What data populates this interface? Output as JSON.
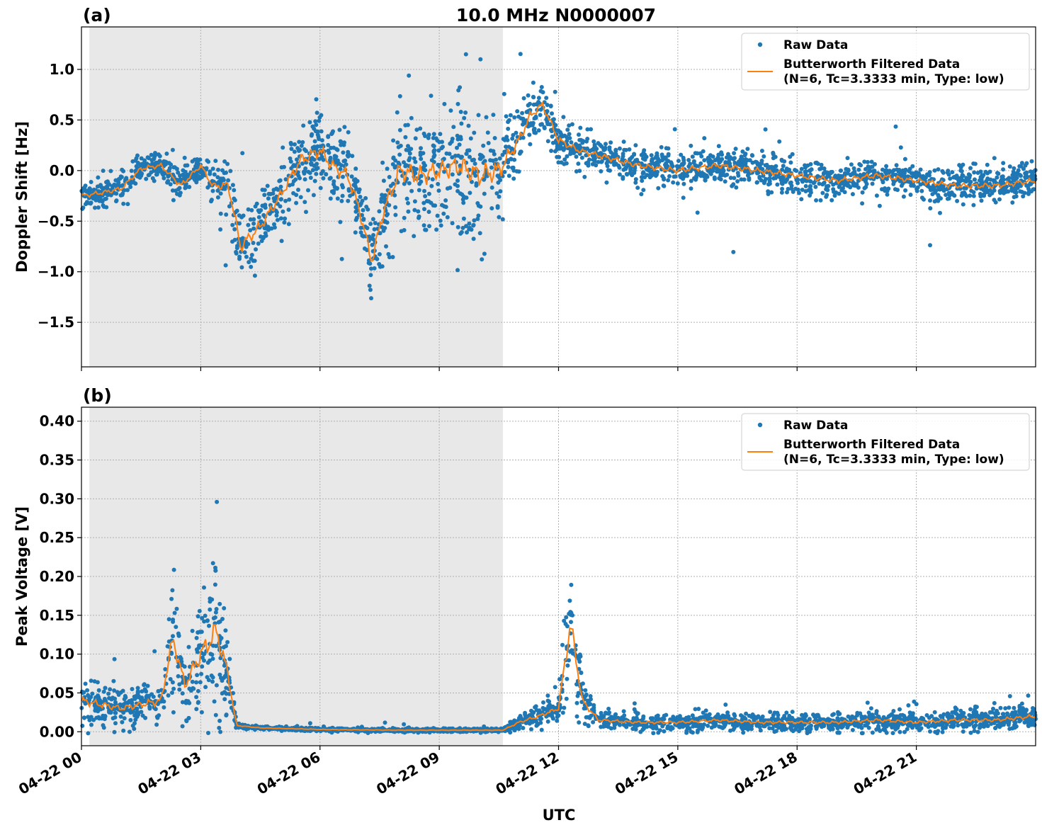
{
  "chart_data": [
    {
      "type": "scatter",
      "panel_label": "(a)",
      "title": "10.0 MHz N0000007",
      "xlabel": "",
      "ylabel": "Doppler Shift [Hz]",
      "xlim_hours": [
        0,
        24
      ],
      "ylim": [
        -1.94,
        1.42
      ],
      "yticks": [
        1.0,
        0.5,
        0.0,
        -0.5,
        -1.0,
        -1.5
      ],
      "ytick_labels": [
        "1.0",
        "0.5",
        "0.0",
        "−0.5",
        "−1.0",
        "−1.5"
      ],
      "shaded_interval_hours": [
        0.2,
        10.6
      ],
      "grid": true,
      "legend_placement": "top-right",
      "legend": {
        "raw": "Raw Data",
        "filtered_line1": "Butterworth Filtered Data",
        "filtered_line2": "(N=6, Tc=3.3333 min, Type: low)"
      },
      "series": [
        {
          "name": "Raw Data",
          "kind": "scatter",
          "color": "#1f77b4",
          "x_hours": [
            0,
            0.5,
            1,
            1.5,
            2,
            2.5,
            3,
            3.3,
            3.7,
            4,
            4.5,
            5,
            5.5,
            6,
            6.3,
            6.7,
            7,
            7.3,
            7.6,
            8,
            8.5,
            9,
            9.5,
            10,
            10.5,
            11,
            11.3,
            11.6,
            12,
            12.5,
            13,
            14,
            15,
            16,
            17,
            18,
            19,
            20,
            21,
            22,
            23,
            24
          ],
          "y": [
            -0.25,
            -0.22,
            -0.18,
            0.02,
            0.05,
            -0.15,
            0.05,
            -0.15,
            -0.15,
            -0.75,
            -0.55,
            -0.25,
            0.1,
            0.2,
            0.05,
            -0.05,
            -0.4,
            -0.9,
            -0.4,
            0.0,
            -0.05,
            0.0,
            0.05,
            -0.05,
            0.0,
            0.3,
            0.55,
            0.65,
            0.3,
            0.2,
            0.15,
            0.05,
            0.0,
            0.05,
            0.0,
            -0.05,
            -0.1,
            -0.05,
            -0.1,
            -0.15,
            -0.15,
            -0.1
          ],
          "spread": [
            0.12,
            0.12,
            0.12,
            0.12,
            0.12,
            0.15,
            0.12,
            0.15,
            0.3,
            0.35,
            0.3,
            0.3,
            0.35,
            0.35,
            0.35,
            0.35,
            0.35,
            0.35,
            0.4,
            0.55,
            0.55,
            0.55,
            0.6,
            0.65,
            0.55,
            0.3,
            0.25,
            0.2,
            0.2,
            0.15,
            0.15,
            0.15,
            0.15,
            0.15,
            0.15,
            0.15,
            0.15,
            0.15,
            0.15,
            0.15,
            0.15,
            0.15
          ]
        },
        {
          "name": "Butterworth Filtered Data\n(N=6, Tc=3.3333 min, Type: low)",
          "kind": "line",
          "color": "#ff7f0e",
          "x_hours": [
            0,
            0.5,
            1,
            1.5,
            2,
            2.5,
            3,
            3.3,
            3.7,
            4,
            4.5,
            5,
            5.5,
            6,
            6.3,
            6.7,
            7,
            7.3,
            7.6,
            8,
            8.5,
            9,
            9.5,
            10,
            10.5,
            11,
            11.3,
            11.6,
            12,
            12.5,
            13,
            14,
            15,
            16,
            17,
            18,
            19,
            20,
            21,
            22,
            23,
            24
          ],
          "y": [
            -0.25,
            -0.22,
            -0.18,
            0.02,
            0.05,
            -0.15,
            0.05,
            -0.15,
            -0.15,
            -0.75,
            -0.55,
            -0.25,
            0.1,
            0.2,
            0.05,
            -0.05,
            -0.4,
            -0.9,
            -0.4,
            0.0,
            -0.05,
            0.0,
            0.05,
            -0.05,
            0.0,
            0.3,
            0.55,
            0.65,
            0.3,
            0.2,
            0.15,
            0.05,
            0.0,
            0.05,
            0.0,
            -0.05,
            -0.1,
            -0.05,
            -0.1,
            -0.15,
            -0.15,
            -0.1
          ]
        }
      ]
    },
    {
      "type": "scatter",
      "panel_label": "(b)",
      "title": "",
      "xlabel": "UTC",
      "ylabel": "Peak Voltage [V]",
      "xlim_hours": [
        0,
        24
      ],
      "ylim": [
        -0.018,
        0.418
      ],
      "yticks": [
        0.4,
        0.35,
        0.3,
        0.25,
        0.2,
        0.15,
        0.1,
        0.05,
        0.0
      ],
      "ytick_labels": [
        "0.40",
        "0.35",
        "0.30",
        "0.25",
        "0.20",
        "0.15",
        "0.10",
        "0.05",
        "0.00"
      ],
      "xticks_hours": [
        0,
        3,
        6,
        9,
        12,
        15,
        18,
        21
      ],
      "xtick_labels": [
        "04-22 00",
        "04-22 03",
        "04-22 06",
        "04-22 09",
        "04-22 12",
        "04-22 15",
        "04-22 18",
        "04-22 21"
      ],
      "shaded_interval_hours": [
        0.2,
        10.6
      ],
      "grid": true,
      "legend_placement": "top-right",
      "legend": {
        "raw": "Raw Data",
        "filtered_line1": "Butterworth Filtered Data",
        "filtered_line2": "(N=6, Tc=3.3333 min, Type: low)"
      },
      "series": [
        {
          "name": "Raw Data",
          "kind": "scatter",
          "color": "#1f77b4",
          "x_hours": [
            0,
            0.5,
            1,
            1.5,
            2,
            2.3,
            2.6,
            3,
            3.4,
            3.7,
            3.9,
            4.5,
            6,
            8,
            10,
            10.6,
            11,
            11.5,
            12,
            12.3,
            12.6,
            13,
            14,
            15,
            16,
            17,
            18,
            19,
            20,
            21,
            22,
            23,
            24
          ],
          "y": [
            0.04,
            0.035,
            0.03,
            0.035,
            0.04,
            0.12,
            0.06,
            0.1,
            0.13,
            0.07,
            0.008,
            0.005,
            0.003,
            0.002,
            0.002,
            0.002,
            0.012,
            0.02,
            0.03,
            0.14,
            0.04,
            0.015,
            0.012,
            0.012,
            0.015,
            0.012,
            0.012,
            0.012,
            0.015,
            0.012,
            0.015,
            0.015,
            0.02
          ],
          "spread": [
            0.03,
            0.025,
            0.02,
            0.025,
            0.03,
            0.06,
            0.04,
            0.07,
            0.09,
            0.05,
            0.003,
            0.002,
            0.002,
            0.002,
            0.002,
            0.002,
            0.008,
            0.012,
            0.015,
            0.08,
            0.025,
            0.01,
            0.01,
            0.01,
            0.01,
            0.01,
            0.01,
            0.01,
            0.012,
            0.01,
            0.012,
            0.012,
            0.015
          ]
        },
        {
          "name": "Butterworth Filtered Data\n(N=6, Tc=3.3333 min, Type: low)",
          "kind": "line",
          "color": "#ff7f0e",
          "x_hours": [
            0,
            0.5,
            1,
            1.5,
            2,
            2.3,
            2.6,
            3,
            3.4,
            3.7,
            3.9,
            4.5,
            6,
            8,
            10,
            10.6,
            11,
            11.5,
            12,
            12.3,
            12.6,
            13,
            14,
            15,
            16,
            17,
            18,
            19,
            20,
            21,
            22,
            23,
            24
          ],
          "y": [
            0.04,
            0.035,
            0.03,
            0.035,
            0.04,
            0.12,
            0.06,
            0.1,
            0.13,
            0.07,
            0.008,
            0.005,
            0.003,
            0.002,
            0.002,
            0.002,
            0.012,
            0.02,
            0.03,
            0.14,
            0.04,
            0.015,
            0.012,
            0.012,
            0.015,
            0.012,
            0.012,
            0.012,
            0.015,
            0.012,
            0.015,
            0.015,
            0.02
          ]
        }
      ]
    }
  ]
}
